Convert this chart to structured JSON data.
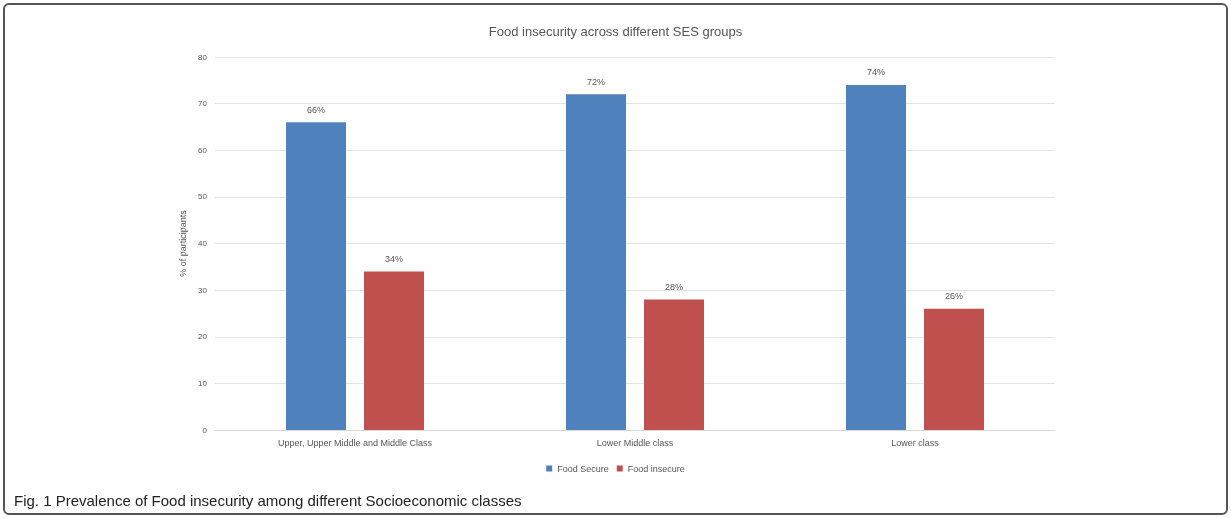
{
  "chart_data": {
    "type": "bar",
    "title": "Food insecurity across different SES groups",
    "ylabel": "% of participants",
    "categories": [
      "Upper, Upper Middle and Middle Class",
      "Lower Middle class",
      "Lower class"
    ],
    "series": [
      {
        "name": "Food Secure",
        "color": "#4f81bd",
        "values": [
          66,
          72,
          74
        ],
        "value_labels": [
          "66%",
          "72%",
          "74%"
        ]
      },
      {
        "name": "Food insecure",
        "color": "#c0504d",
        "values": [
          34,
          28,
          26
        ],
        "value_labels": [
          "34%",
          "28%",
          "26%"
        ]
      }
    ],
    "ylim": [
      0,
      80
    ],
    "yticks": [
      0,
      10,
      20,
      30,
      40,
      50,
      60,
      70,
      80
    ],
    "grid": "y",
    "legend": "bottom",
    "annotations": [
      "Fig. 1 Prevalence of Food insecurity among different Socioeconomic classes"
    ]
  }
}
